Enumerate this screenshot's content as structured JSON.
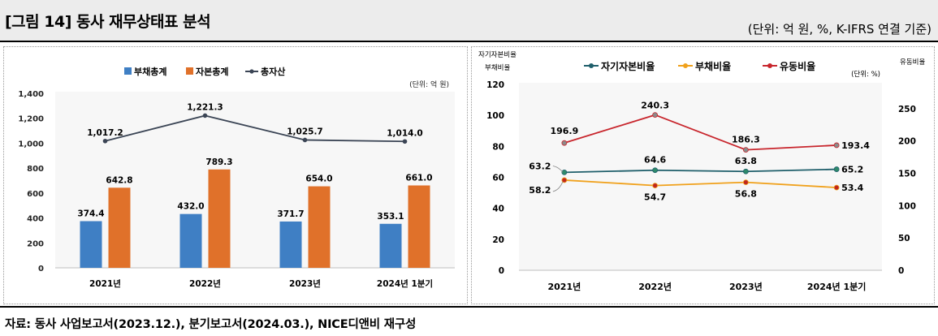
{
  "header": {
    "title": "[그림 14] 동사 재무상태표 분석",
    "unit_note": "(단위: 억 원, %, K-IFRS 연결 기준)"
  },
  "footer": {
    "source": "자료: 동사 사업보고서(2023.12.), 분기보고서(2024.03.), NICE디앤비 재구성"
  },
  "colors": {
    "liabilities": "#3f7fc4",
    "equity": "#e0712a",
    "total_assets": "#3b4555",
    "equity_ratio": "#1f5f6b",
    "debt_ratio": "#f0a11c",
    "current_ratio": "#c8262d"
  },
  "chart_data": [
    {
      "type": "bar",
      "unit": "(단위: 억 원)",
      "categories": [
        "2021년",
        "2022년",
        "2023년",
        "2024년 1분기"
      ],
      "series": [
        {
          "name": "부채총계",
          "kind": "bar",
          "values": [
            374.4,
            432.0,
            371.7,
            353.1
          ],
          "labels": [
            "374.4",
            "432.0",
            "371.7",
            "353.1"
          ]
        },
        {
          "name": "자본총계",
          "kind": "bar",
          "values": [
            642.8,
            789.3,
            654.0,
            661.0
          ],
          "labels": [
            "642.8",
            "789.3",
            "654.0",
            "661.0"
          ]
        },
        {
          "name": "총자산",
          "kind": "line",
          "values": [
            1017.2,
            1221.3,
            1025.7,
            1014.0
          ],
          "labels": [
            "1,017.2",
            "1,221.3",
            "1,025.7",
            "1,014.0"
          ]
        }
      ],
      "ylim": [
        0,
        1400
      ],
      "yticks": [
        "0",
        "200",
        "400",
        "600",
        "800",
        "1,000",
        "1,200",
        "1,400"
      ],
      "grid": false,
      "legend": "top-center"
    },
    {
      "type": "line",
      "unit": "(단위: %)",
      "categories": [
        "2021년",
        "2022년",
        "2023년",
        "2024년 1분기"
      ],
      "left_axis_label": [
        "자기자본비율",
        "부채비율"
      ],
      "right_axis_label": "유동비율",
      "series": [
        {
          "name": "자기자본비율",
          "axis": "left",
          "values": [
            63.2,
            64.6,
            63.8,
            65.2
          ],
          "labels": [
            "63.2",
            "64.6",
            "63.8",
            "65.2"
          ]
        },
        {
          "name": "부채비율",
          "axis": "left",
          "values": [
            58.2,
            54.7,
            56.8,
            53.4
          ],
          "labels": [
            "58.2",
            "54.7",
            "56.8",
            "53.4"
          ]
        },
        {
          "name": "유동비율",
          "axis": "right",
          "values": [
            196.9,
            240.3,
            186.3,
            193.4
          ],
          "labels": [
            "196.9",
            "240.3",
            "186.3",
            "193.4"
          ]
        }
      ],
      "ylim_left": [
        0,
        120
      ],
      "yticks_left": [
        "0",
        "20",
        "40",
        "60",
        "80",
        "100",
        "120"
      ],
      "ylim_right": [
        0,
        287.5
      ],
      "yticks_right": [
        "0",
        "50",
        "100",
        "150",
        "200",
        "250"
      ],
      "grid": false,
      "legend": "top-center"
    }
  ]
}
